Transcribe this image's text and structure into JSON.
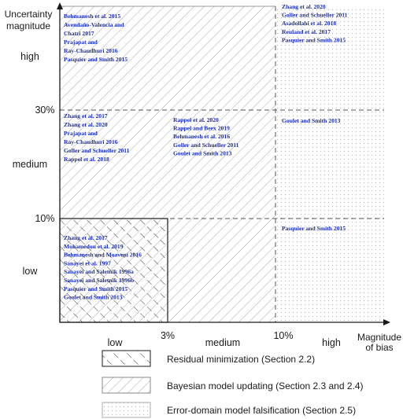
{
  "axes": {
    "y_label_line1": "Uncertainty",
    "y_label_line2": "magnitude",
    "x_label_line1": "Magnitude",
    "x_label_line2": "of bias"
  },
  "y_levels": {
    "high": "high",
    "t30": "30%",
    "medium": "medium",
    "t10": "10%",
    "low": "low"
  },
  "x_levels": {
    "low": "low",
    "t3": "3%",
    "medium": "medium",
    "t10": "10%",
    "high": "high"
  },
  "cells": {
    "high_low": [
      "Behmanesh et al. 2015",
      "Avendaño-Valencia and",
      "Chatzi 2017",
      "Prajapat and",
      "Ray-Chaudhuri 2016",
      "Pasquier and Smith 2015"
    ],
    "high_high": [
      "Zhang et al. 2020",
      "Goller and Schueller 2011",
      "Asadollahi et al. 2018",
      "Reuland et al. 2017",
      "Pasquier and Smith 2015"
    ],
    "medium_low": [
      "Zhang et al. 2017",
      "Zhang et al. 2020",
      "Prajapat and",
      "Ray-Chaudhuri 2016",
      "Goller and Schueller 2011",
      "Rappel et al. 2018"
    ],
    "medium_medium": [
      "Rappel et al. 2020",
      "Rappel and Beex 2019",
      "Behmanesh et al. 2016",
      "Goller and Schueller 2011",
      "Goulet and Smith 2013"
    ],
    "medium_high": [
      "Goulet and Smith 2013"
    ],
    "low_low": [
      "Zhang et al. 2017",
      "Mohamedou et al. 2019",
      "Behmanesh and Moaveni 2016",
      "Sanayei et al. 1997",
      "Sanayei and Saletnik 1996a",
      "Sanayei and Saletnik 1996b",
      "Pasquier and Smith 2015",
      "Goulet and Smith 2013"
    ],
    "low_high": [
      "Pasquier and Smith 2015"
    ]
  },
  "legend": [
    {
      "label": "Residual minimization (Section 2.2)",
      "pattern": "residual-minimization"
    },
    {
      "label": "Bayesian model updating (Section 2.3 and 2.4)",
      "pattern": "bayesian-updating"
    },
    {
      "label": "Error-domain model falsification (Section 2.5)",
      "pattern": "error-domain-falsification"
    }
  ],
  "colors": {
    "reference_text": "#1a2fb8",
    "axis": "#1a1a1a",
    "hatch": "#a8a8a8",
    "dots": "#b5b5b5"
  }
}
